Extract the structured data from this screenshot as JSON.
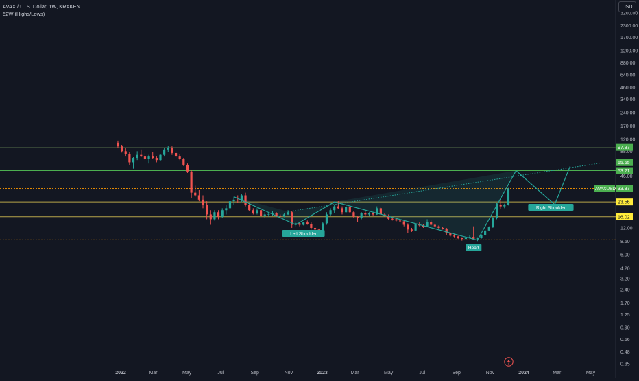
{
  "header": {
    "symbol_line": "AVAX / U. S. Dollar, 1W, KRAKEN",
    "indicator_line": "52W (Highs/Lows)"
  },
  "currency_label": "USD",
  "colors": {
    "background": "#131722",
    "up": "#26a69a",
    "down": "#ef5350",
    "green_line": "#4caf50",
    "dotted_orange": "#ff9800",
    "yellow_line": "#b8a64a",
    "pattern": "#26a69a",
    "axis_text": "#b2b5be"
  },
  "chart_data": {
    "type": "candlestick",
    "title": "AVAX / U. S. Dollar, 1W, KRAKEN",
    "indicator": "52W (Highs/Lows)",
    "scale": "log",
    "currency": "USD",
    "y_ticks": [
      3200,
      2300,
      1700,
      1200,
      880,
      640,
      460,
      340,
      240,
      170,
      120,
      88,
      46,
      12,
      8.5,
      6,
      4.2,
      3.2,
      2.4,
      1.7,
      1.25,
      0.9,
      0.66,
      0.48,
      0.35
    ],
    "x_ticks": [
      {
        "label": "2022",
        "date": "2022-01-01",
        "bold": true
      },
      {
        "label": "Mar",
        "date": "2022-03-01"
      },
      {
        "label": "May",
        "date": "2022-05-01"
      },
      {
        "label": "Jul",
        "date": "2022-07-01"
      },
      {
        "label": "Sep",
        "date": "2022-09-01"
      },
      {
        "label": "Nov",
        "date": "2022-11-01"
      },
      {
        "label": "2023",
        "date": "2023-01-01",
        "bold": true
      },
      {
        "label": "Mar",
        "date": "2023-03-01"
      },
      {
        "label": "May",
        "date": "2023-05-01"
      },
      {
        "label": "Jul",
        "date": "2023-07-01"
      },
      {
        "label": "Sep",
        "date": "2023-09-01"
      },
      {
        "label": "Nov",
        "date": "2023-11-01"
      },
      {
        "label": "2024",
        "date": "2024-01-01",
        "bold": true
      },
      {
        "label": "Mar",
        "date": "2024-03-01"
      },
      {
        "label": "May",
        "date": "2024-05-01"
      }
    ],
    "price_lines": [
      {
        "value": 97.37,
        "label": "97.37",
        "color": "#3a4a3a",
        "style": "solid",
        "badge": "#4caf50"
      },
      {
        "value": 53.21,
        "label": "53.21",
        "color": "#4caf50",
        "style": "solid",
        "badge": "#4caf50"
      },
      {
        "value": 33.37,
        "label": "33.37",
        "color": "#ff9800",
        "style": "dotted",
        "badge": "#4caf50",
        "tag": "AVAXUSD"
      },
      {
        "value": 23.56,
        "label": "23.56",
        "color": "#b8a64a",
        "style": "solid",
        "badge": "#ffeb3b"
      },
      {
        "value": 16.02,
        "label": "16.02",
        "color": "#b8a64a",
        "style": "solid",
        "badge": "#ffeb3b"
      },
      {
        "value": 8.8,
        "label": "",
        "color": "#ff9800",
        "style": "dotted",
        "badge": ""
      }
    ],
    "extra_badge": {
      "value": 65.65,
      "label": "65.65",
      "color": "#4caf50"
    },
    "candles": [
      [
        "2021-12-27",
        110,
        116,
        95,
        100
      ],
      [
        "2022-01-03",
        100,
        104,
        85,
        88
      ],
      [
        "2022-01-10",
        88,
        95,
        78,
        82
      ],
      [
        "2022-01-17",
        82,
        86,
        62,
        66
      ],
      [
        "2022-01-24",
        66,
        76,
        56,
        74
      ],
      [
        "2022-01-31",
        74,
        88,
        70,
        80
      ],
      [
        "2022-02-07",
        80,
        92,
        76,
        78
      ],
      [
        "2022-02-14",
        78,
        84,
        70,
        72
      ],
      [
        "2022-02-21",
        72,
        80,
        64,
        78
      ],
      [
        "2022-02-28",
        78,
        86,
        72,
        74
      ],
      [
        "2022-03-07",
        74,
        78,
        66,
        70
      ],
      [
        "2022-03-14",
        70,
        82,
        68,
        80
      ],
      [
        "2022-03-21",
        80,
        96,
        78,
        92
      ],
      [
        "2022-03-28",
        92,
        102,
        86,
        96
      ],
      [
        "2022-04-04",
        96,
        100,
        80,
        84
      ],
      [
        "2022-04-11",
        84,
        88,
        74,
        78
      ],
      [
        "2022-04-18",
        78,
        82,
        70,
        72
      ],
      [
        "2022-04-25",
        72,
        74,
        60,
        62
      ],
      [
        "2022-05-02",
        62,
        64,
        50,
        52
      ],
      [
        "2022-05-09",
        52,
        54,
        26,
        30
      ],
      [
        "2022-05-16",
        30,
        36,
        27,
        28
      ],
      [
        "2022-05-23",
        28,
        32,
        24,
        25
      ],
      [
        "2022-05-30",
        25,
        28,
        20,
        22
      ],
      [
        "2022-06-06",
        22,
        24,
        15,
        17
      ],
      [
        "2022-06-13",
        17,
        19,
        13,
        15
      ],
      [
        "2022-06-20",
        15,
        19,
        14.5,
        18
      ],
      [
        "2022-06-27",
        18,
        19,
        15,
        16
      ],
      [
        "2022-07-04",
        16,
        20,
        15.5,
        19
      ],
      [
        "2022-07-11",
        19,
        22,
        17,
        20
      ],
      [
        "2022-07-18",
        20,
        26,
        19,
        24
      ],
      [
        "2022-07-25",
        24,
        27,
        22,
        25
      ],
      [
        "2022-08-01",
        25,
        28,
        23,
        24.5
      ],
      [
        "2022-08-08",
        24.5,
        29,
        23.5,
        28
      ],
      [
        "2022-08-15",
        28,
        30,
        21,
        22
      ],
      [
        "2022-08-22",
        22,
        23,
        18.5,
        19
      ],
      [
        "2022-08-29",
        19,
        20,
        17,
        17.5
      ],
      [
        "2022-09-05",
        17.5,
        20,
        17,
        19
      ],
      [
        "2022-09-12",
        19,
        20,
        16,
        16.5
      ],
      [
        "2022-09-19",
        16.5,
        18,
        15.5,
        17
      ],
      [
        "2022-09-26",
        17,
        18,
        16,
        17.2
      ],
      [
        "2022-10-03",
        17.2,
        18.5,
        16.5,
        17.6
      ],
      [
        "2022-10-10",
        17.6,
        18,
        16,
        16.4
      ],
      [
        "2022-10-17",
        16.4,
        17,
        15.8,
        16.2
      ],
      [
        "2022-10-24",
        16.2,
        17.5,
        15.8,
        17
      ],
      [
        "2022-10-31",
        17,
        19,
        16.8,
        18
      ],
      [
        "2022-11-07",
        18,
        18.5,
        12,
        13
      ],
      [
        "2022-11-14",
        13,
        14,
        12.5,
        13.5
      ],
      [
        "2022-11-21",
        13.5,
        14,
        12.5,
        13
      ],
      [
        "2022-11-28",
        13,
        14,
        12.8,
        13.8
      ],
      [
        "2022-12-05",
        13.8,
        14.5,
        13,
        13.2
      ],
      [
        "2022-12-12",
        13.2,
        13.8,
        11.5,
        12
      ],
      [
        "2022-12-19",
        12,
        12.5,
        11.2,
        11.5
      ],
      [
        "2022-12-26",
        11.5,
        11.8,
        10.6,
        11
      ],
      [
        "2023-01-02",
        11,
        14,
        10.8,
        13.5
      ],
      [
        "2023-01-09",
        13.5,
        18,
        13,
        17
      ],
      [
        "2023-01-16",
        17,
        20,
        16.5,
        19
      ],
      [
        "2023-01-23",
        19,
        22,
        17.5,
        21
      ],
      [
        "2023-01-30",
        21,
        24,
        19.5,
        20
      ],
      [
        "2023-02-06",
        20,
        21,
        17,
        18
      ],
      [
        "2023-02-13",
        18,
        22,
        17.5,
        20.5
      ],
      [
        "2023-02-20",
        20.5,
        21.5,
        17.5,
        18
      ],
      [
        "2023-02-27",
        18,
        18.5,
        15.5,
        16
      ],
      [
        "2023-03-06",
        16,
        16.5,
        14,
        15.5
      ],
      [
        "2023-03-13",
        15.5,
        18,
        15,
        17.5
      ],
      [
        "2023-03-20",
        17.5,
        18.5,
        16,
        17
      ],
      [
        "2023-03-27",
        17,
        18,
        16.2,
        17.5
      ],
      [
        "2023-04-03",
        17.5,
        18,
        16.5,
        17
      ],
      [
        "2023-04-10",
        17,
        21,
        16.8,
        20
      ],
      [
        "2023-04-17",
        20,
        20.5,
        16.5,
        17
      ],
      [
        "2023-04-24",
        17,
        17.5,
        16,
        16.5
      ],
      [
        "2023-05-01",
        16.5,
        17,
        14.8,
        15.2
      ],
      [
        "2023-05-08",
        15.2,
        15.6,
        14.5,
        15
      ],
      [
        "2023-05-15",
        15,
        15.5,
        14.2,
        14.5
      ],
      [
        "2023-05-22",
        14.5,
        15,
        14,
        14.2
      ],
      [
        "2023-05-29",
        14.2,
        14.8,
        12.5,
        13
      ],
      [
        "2023-06-05",
        13,
        13.5,
        10.5,
        11.5
      ],
      [
        "2023-06-12",
        11.5,
        12,
        10.8,
        11.2
      ],
      [
        "2023-06-19",
        11.2,
        13.5,
        11,
        13.2
      ],
      [
        "2023-06-26",
        13.2,
        13.8,
        12.5,
        12.8
      ],
      [
        "2023-07-03",
        12.8,
        13.2,
        12,
        12.4
      ],
      [
        "2023-07-10",
        12.4,
        15,
        12.2,
        14
      ],
      [
        "2023-07-17",
        14,
        14.5,
        12.8,
        13
      ],
      [
        "2023-07-24",
        13,
        13.4,
        12.2,
        12.5
      ],
      [
        "2023-07-31",
        12.5,
        12.8,
        11.8,
        12
      ],
      [
        "2023-08-07",
        12,
        12.3,
        11.5,
        11.8
      ],
      [
        "2023-08-14",
        11.8,
        12,
        10,
        10.4
      ],
      [
        "2023-08-21",
        10.4,
        10.6,
        9.6,
        9.8
      ],
      [
        "2023-08-28",
        9.8,
        10.2,
        9.4,
        9.6
      ],
      [
        "2023-09-04",
        9.6,
        9.8,
        9.0,
        9.2
      ],
      [
        "2023-09-11",
        9.2,
        9.4,
        8.6,
        9.0
      ],
      [
        "2023-09-18",
        9.0,
        9.6,
        8.8,
        9.3
      ],
      [
        "2023-09-25",
        9.3,
        10,
        9.1,
        9.5
      ],
      [
        "2023-10-02",
        9.5,
        12.5,
        9.3,
        9.0
      ],
      [
        "2023-10-09",
        9.0,
        9.4,
        8.5,
        9.2
      ],
      [
        "2023-10-16",
        9.2,
        10.2,
        9.0,
        10
      ],
      [
        "2023-10-23",
        10,
        11.5,
        9.8,
        11.2
      ],
      [
        "2023-10-30",
        11.2,
        12.5,
        11,
        12.2
      ],
      [
        "2023-11-06",
        12.2,
        16,
        12,
        15.5
      ],
      [
        "2023-11-13",
        15.5,
        23,
        15,
        22
      ],
      [
        "2023-11-20",
        22,
        24.5,
        19.5,
        21
      ],
      [
        "2023-11-27",
        21,
        22.5,
        20,
        21.8
      ],
      [
        "2023-12-04",
        21.8,
        34,
        21.5,
        33.37
      ]
    ],
    "pattern": {
      "name": "Head and Shoulders (inverse)",
      "points": [
        [
          "2022-07-25",
          27
        ],
        [
          "2022-11-14",
          13
        ],
        [
          "2023-01-23",
          23.6
        ],
        [
          "2023-10-09",
          8.7
        ],
        [
          "2023-12-18",
          53.21
        ],
        [
          "2024-02-26",
          22
        ],
        [
          "2024-03-25",
          60
        ]
      ],
      "neckline": [
        [
          "2022-10-31",
          18.3
        ],
        [
          "2024-05-20",
          65.0
        ]
      ],
      "labels": [
        {
          "text": "Left Shoulder",
          "date": "2022-11-28",
          "value": 10.4,
          "box": true
        },
        {
          "text": "Head",
          "date": "2023-10-02",
          "value": 7.2,
          "box": true
        },
        {
          "text": "Right Shoulder",
          "date": "2024-02-19",
          "value": 20.5,
          "box": true
        }
      ]
    }
  }
}
